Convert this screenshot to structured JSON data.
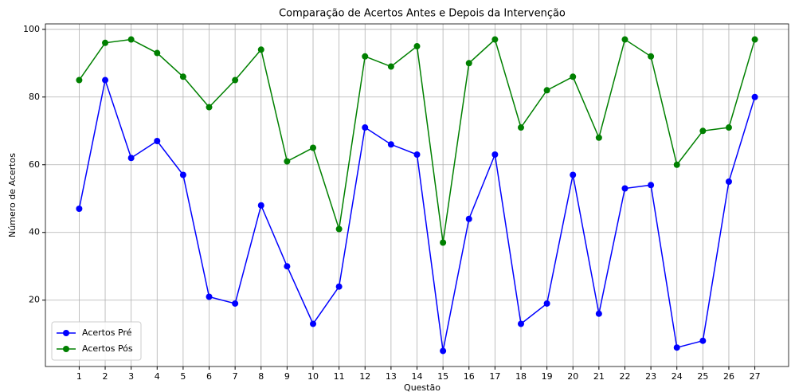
{
  "chart_data": {
    "type": "line",
    "title": "Comparação de Acertos Antes e Depois da Intervenção",
    "xlabel": "Questão",
    "ylabel": "Número de Acertos",
    "x": [
      1,
      2,
      3,
      4,
      5,
      6,
      7,
      8,
      9,
      10,
      11,
      12,
      13,
      14,
      15,
      16,
      17,
      18,
      19,
      20,
      21,
      22,
      23,
      24,
      25,
      26,
      27
    ],
    "series": [
      {
        "name": "Acertos Pré",
        "color": "#0000ff",
        "values": [
          47,
          85,
          62,
          67,
          57,
          21,
          19,
          48,
          30,
          13,
          24,
          71,
          66,
          63,
          5,
          44,
          63,
          13,
          19,
          57,
          16,
          53,
          54,
          6,
          8,
          55,
          80
        ]
      },
      {
        "name": "Acertos Pós",
        "color": "#008000",
        "values": [
          85,
          96,
          97,
          93,
          86,
          77,
          85,
          94,
          61,
          65,
          41,
          92,
          89,
          95,
          37,
          90,
          97,
          71,
          82,
          86,
          68,
          97,
          92,
          60,
          70,
          71,
          97
        ]
      }
    ],
    "xlim": [
      -0.3,
      28.3
    ],
    "xticks": [
      1,
      2,
      3,
      4,
      5,
      6,
      7,
      8,
      9,
      10,
      11,
      12,
      13,
      14,
      15,
      16,
      17,
      18,
      19,
      20,
      21,
      22,
      23,
      24,
      25,
      26,
      27
    ],
    "ylim": [
      0.4,
      101.6
    ],
    "yticks": [
      20,
      40,
      60,
      80,
      100
    ],
    "grid": true,
    "legend": "lower left"
  }
}
